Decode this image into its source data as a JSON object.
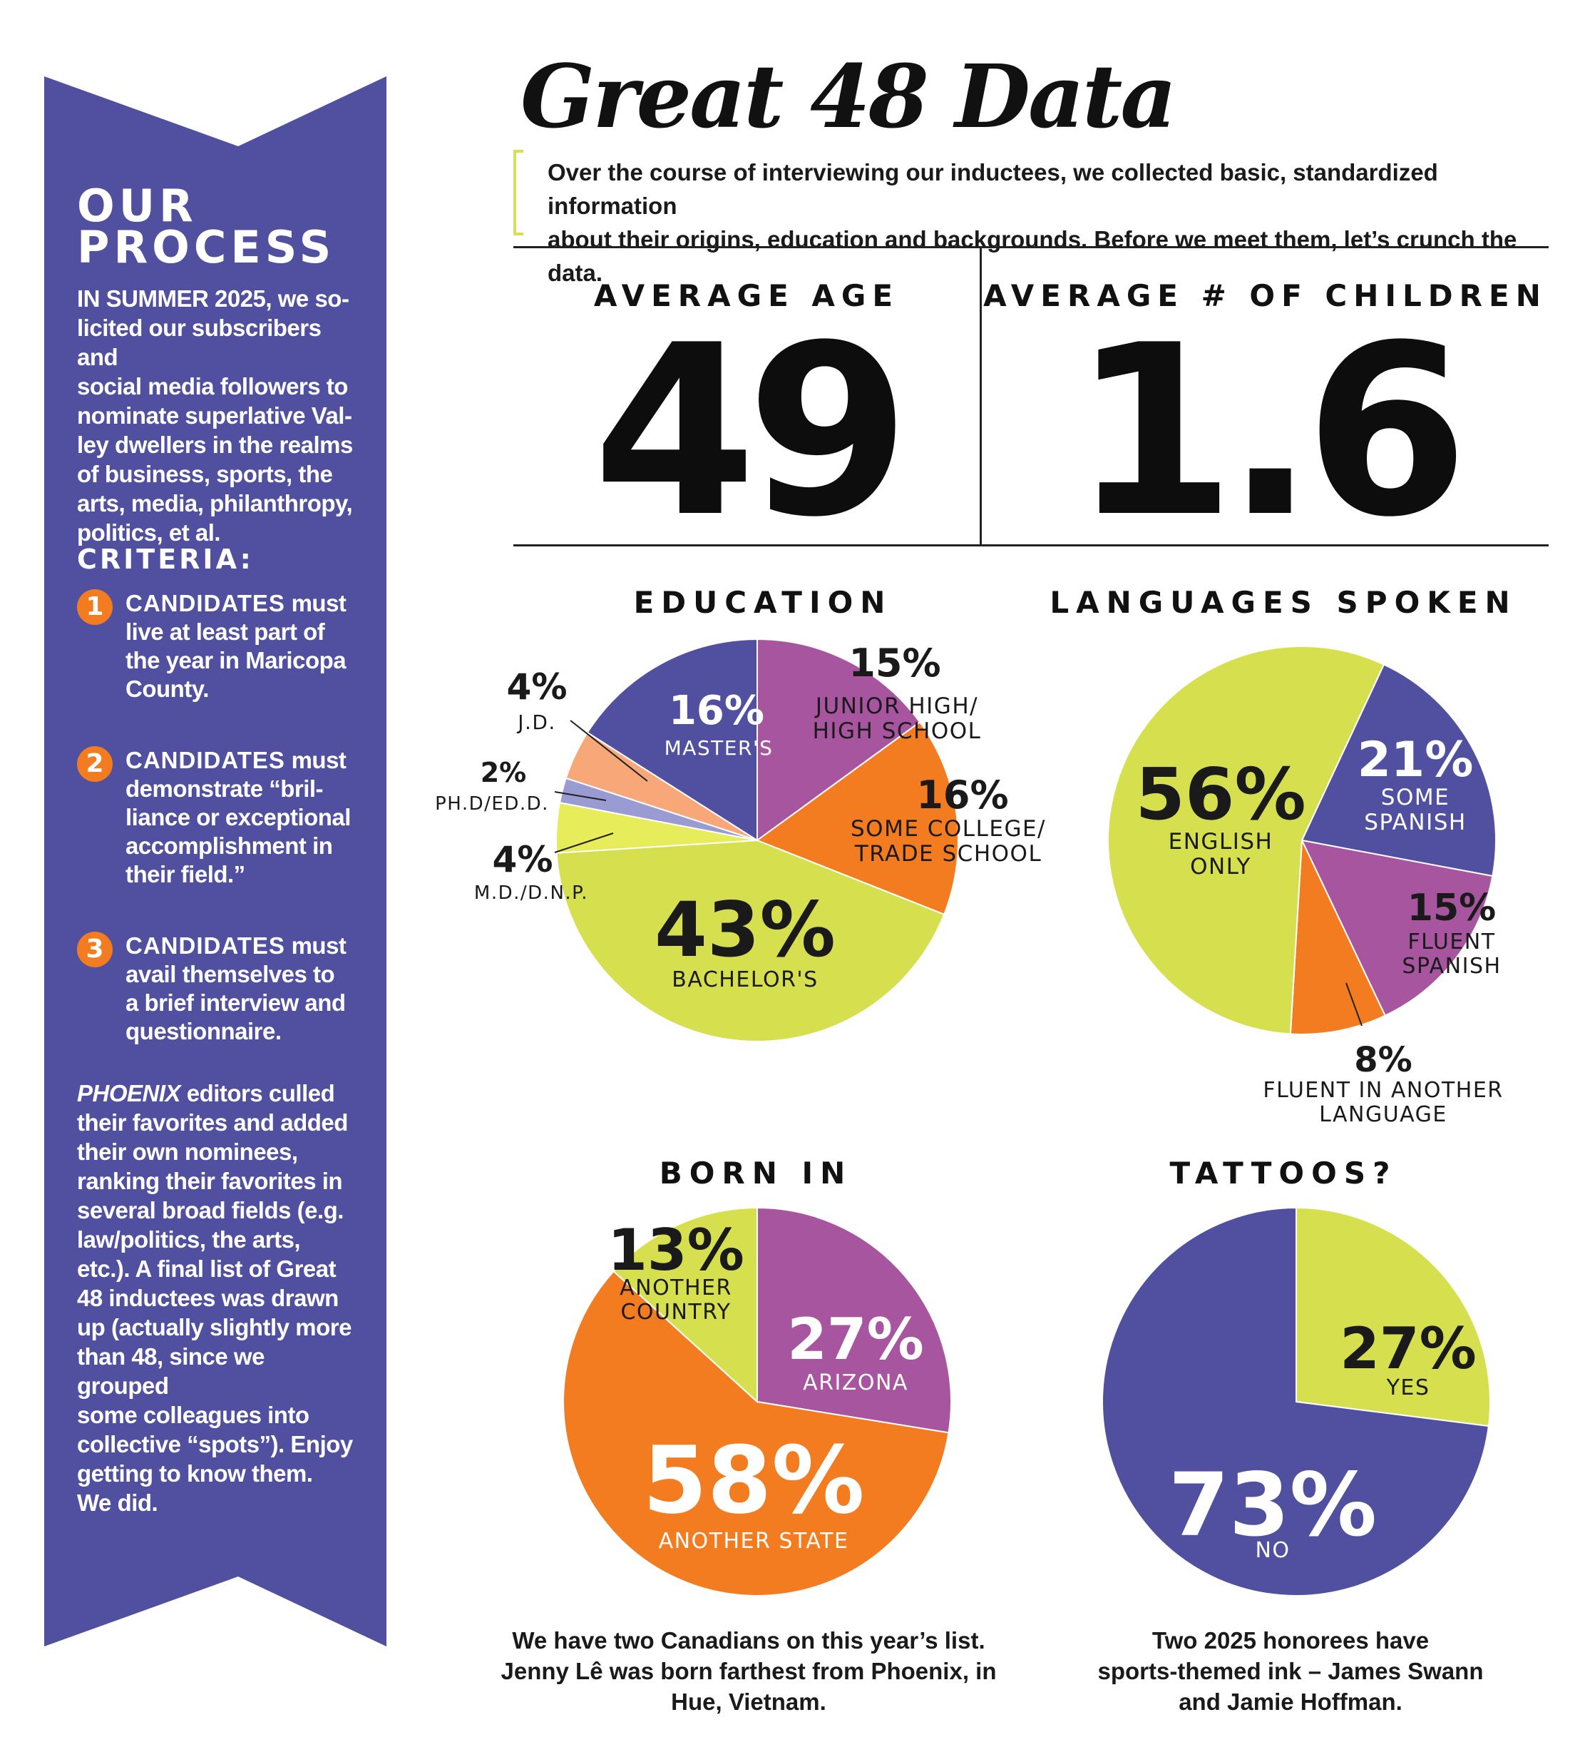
{
  "sidebar": {
    "heading_line1": "OUR",
    "heading_line2": "PROCESS",
    "intro_lead": "IN SUMMER 2025,",
    "intro_lines": [
      "we so-",
      "licited our subscribers and",
      "social media followers to",
      "nominate superlative Val-",
      "ley dwellers in the realms",
      "of business, sports, the",
      "arts, media, philanthropy,",
      "politics, et al."
    ],
    "criteria_heading": "CRITERIA:",
    "criteria": [
      {
        "number": "1",
        "lead": "CANDIDATES",
        "lines": [
          "must",
          "live at least part of",
          "the year in Maricopa",
          "County."
        ]
      },
      {
        "number": "2",
        "lead": "CANDIDATES",
        "lines": [
          "must",
          "demonstrate “bril-",
          "liance or exceptional",
          "accomplishment in",
          "their field.”"
        ]
      },
      {
        "number": "3",
        "lead": "CANDIDATES",
        "lines": [
          "must",
          "avail themselves to",
          "a brief interview and",
          "questionnaire."
        ]
      }
    ],
    "closing_magazine": "PHOENIX",
    "closing_lines": [
      "editors culled",
      "their favorites and added",
      "their own nominees,",
      "ranking their favorites in",
      "several broad fields (e.g.",
      "law/politics, the arts,",
      "etc.). A final list of Great",
      "48 inductees was drawn",
      "up (actually slightly more",
      "than 48, since we grouped",
      "some colleagues into",
      "collective “spots”). Enjoy",
      "getting to know them.",
      "We did."
    ]
  },
  "header": {
    "title": "Great 48 Data",
    "intro_line1": "Over the course of interviewing our inductees, we collected basic, standardized information",
    "intro_line2": "about their origins, education and backgrounds. Before we meet them, let’s crunch the data."
  },
  "stats": {
    "age_label": "AVERAGE AGE",
    "age_value": "49",
    "children_label": "AVERAGE # OF CHILDREN",
    "children_value": "1.6"
  },
  "colors": {
    "purple": "#5150a0",
    "magenta": "#a855a0",
    "orange": "#f47c20",
    "lime": "#d6e04f",
    "peach": "#f8a878",
    "lavender": "#9b9bd3",
    "pale_yellow": "#e6ec5a"
  },
  "chart_data": [
    {
      "type": "pie",
      "title": "EDUCATION",
      "slices": [
        {
          "pct": "15%",
          "value": 15,
          "label": [
            "JUNIOR HIGH/",
            "HIGH SCHOOL"
          ],
          "color": "#a855a0"
        },
        {
          "pct": "16%",
          "value": 16,
          "label": [
            "SOME COLLEGE/",
            "TRADE SCHOOL"
          ],
          "color": "#f47c20"
        },
        {
          "pct": "43%",
          "value": 43,
          "label": [
            "BACHELOR'S"
          ],
          "color": "#d6e04f"
        },
        {
          "pct": "4%",
          "value": 4,
          "label": [
            "M.D./D.N.P."
          ],
          "color": "#e6ec5a"
        },
        {
          "pct": "2%",
          "value": 2,
          "label": [
            "PH.D/ED.D."
          ],
          "color": "#9b9bd3"
        },
        {
          "pct": "4%",
          "value": 4,
          "label": [
            "J.D."
          ],
          "color": "#f8a878"
        },
        {
          "pct": "16%",
          "value": 16,
          "label": [
            "MASTER'S"
          ],
          "color": "#5150a0"
        }
      ]
    },
    {
      "type": "pie",
      "title": "LANGUAGES SPOKEN",
      "slices": [
        {
          "pct": "21%",
          "value": 21,
          "label": [
            "SOME",
            "SPANISH"
          ],
          "color": "#5150a0"
        },
        {
          "pct": "15%",
          "value": 15,
          "label": [
            "FLUENT",
            "SPANISH"
          ],
          "color": "#a855a0"
        },
        {
          "pct": "8%",
          "value": 8,
          "label": [
            "FLUENT IN ANOTHER",
            "LANGUAGE"
          ],
          "color": "#f47c20"
        },
        {
          "pct": "56%",
          "value": 56,
          "label": [
            "ENGLISH",
            "ONLY"
          ],
          "color": "#d6e04f"
        }
      ]
    },
    {
      "type": "pie",
      "title": "BORN IN",
      "slices": [
        {
          "pct": "27%",
          "value": 27,
          "label": [
            "ARIZONA"
          ],
          "color": "#a855a0"
        },
        {
          "pct": "58%",
          "value": 58,
          "label": [
            "ANOTHER STATE"
          ],
          "color": "#f47c20"
        },
        {
          "pct": "13%",
          "value": 13,
          "label": [
            "ANOTHER",
            "COUNTRY"
          ],
          "color": "#d6e04f"
        }
      ],
      "caption": [
        "We have two Canadians on this year’s list.",
        "Jenny Lê was born farthest from Phoenix, in",
        "Hue, Vietnam."
      ]
    },
    {
      "type": "pie",
      "title": "TATTOOS?",
      "slices": [
        {
          "pct": "27%",
          "value": 27,
          "label": [
            "YES"
          ],
          "color": "#d6e04f"
        },
        {
          "pct": "73%",
          "value": 73,
          "label": [
            "NO"
          ],
          "color": "#5150a0"
        }
      ],
      "caption": [
        "Two 2025 honorees have",
        "sports-themed ink – James Swann",
        "and Jamie Hoffman."
      ]
    }
  ]
}
